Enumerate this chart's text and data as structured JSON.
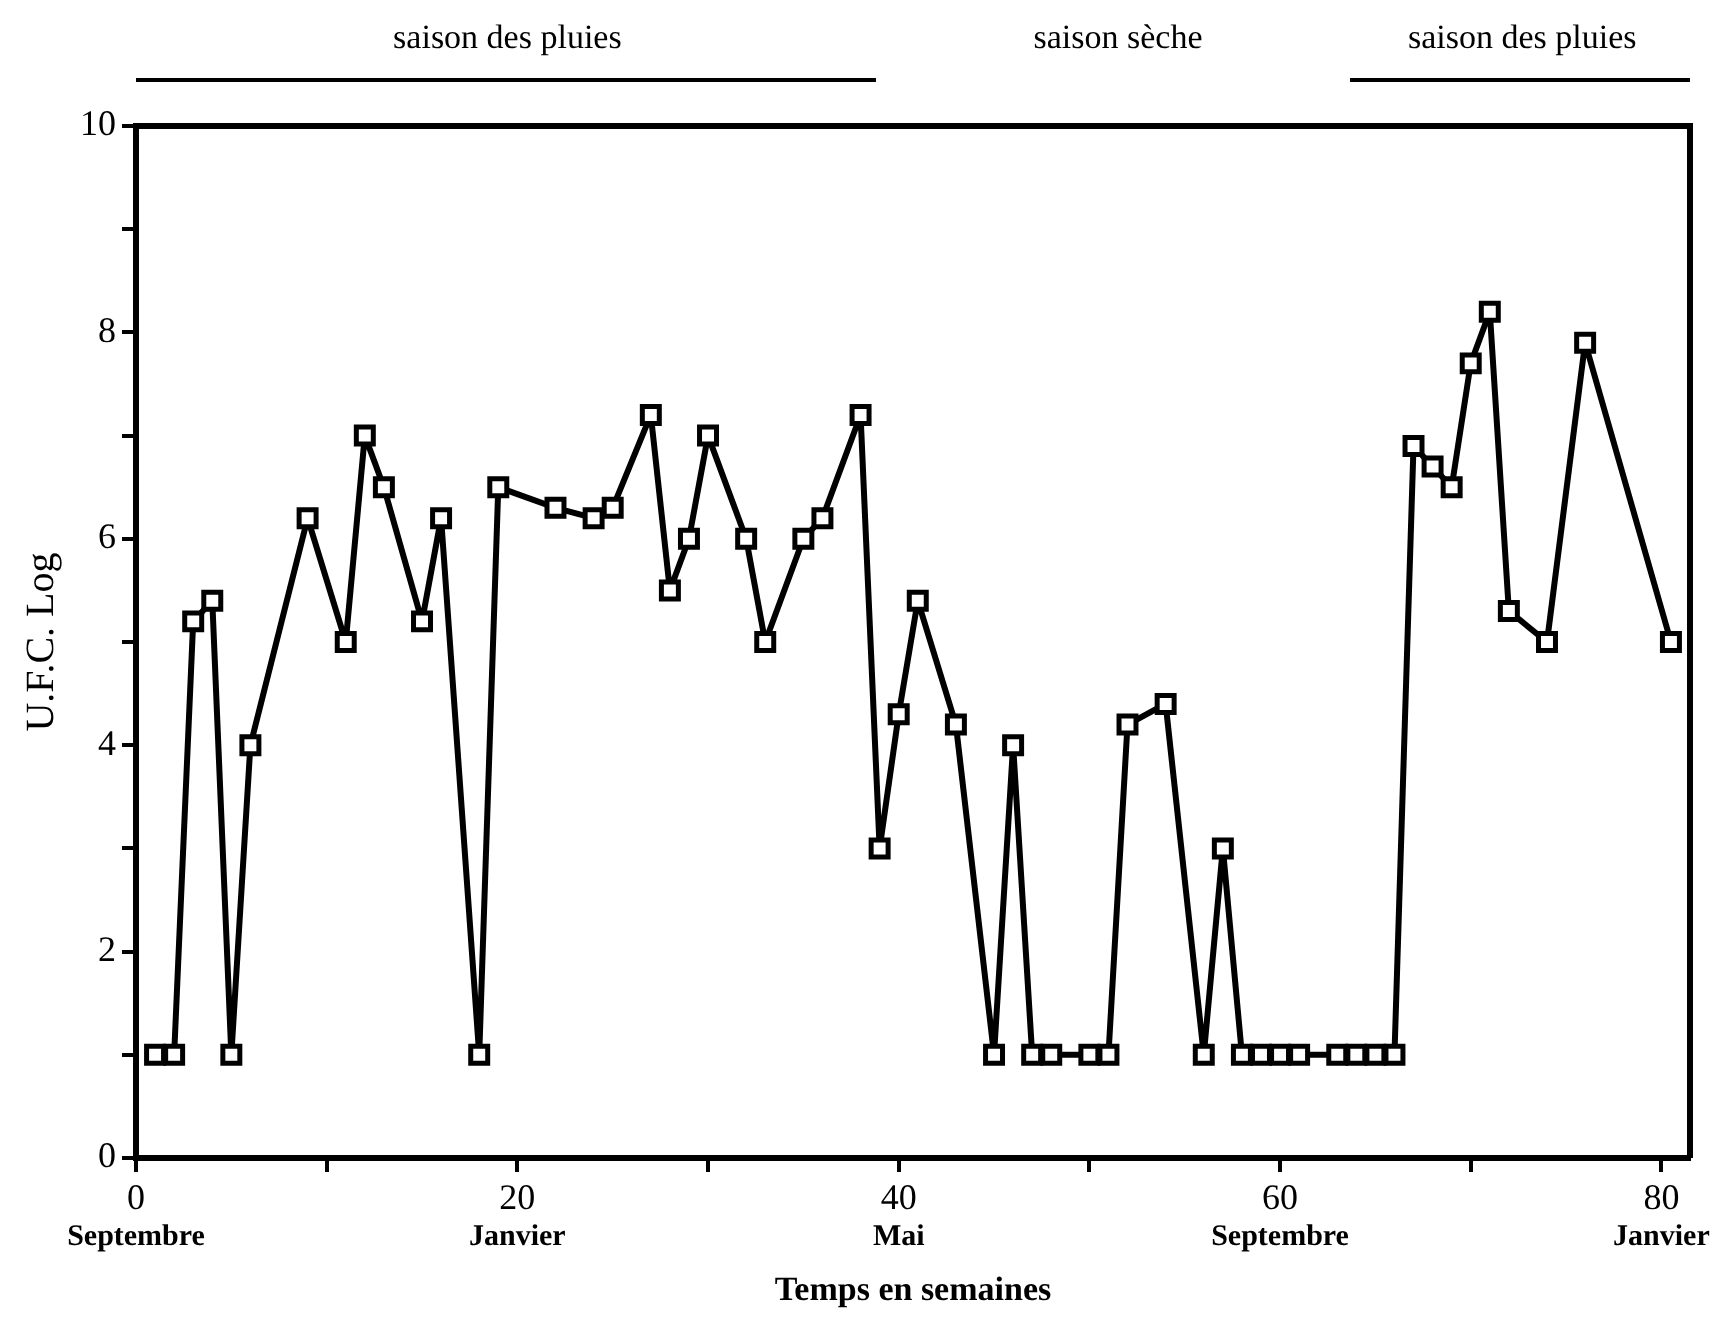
{
  "chart_data": {
    "type": "line",
    "xlabel": "Temps en semaines",
    "ylabel": "U.F.C. Log",
    "x": [
      1,
      2,
      3,
      4,
      5,
      6,
      9,
      11,
      12,
      13,
      15,
      16,
      18,
      19,
      22,
      24,
      25,
      27,
      28,
      29,
      30,
      32,
      33,
      35,
      36,
      38,
      39,
      40,
      41,
      43,
      45,
      46,
      47,
      48,
      50,
      51,
      52,
      54,
      56,
      57,
      58,
      59,
      60,
      61,
      63,
      64,
      65,
      66,
      67,
      68,
      69,
      70,
      71,
      72,
      74,
      76,
      80.5
    ],
    "series": [
      {
        "color": "#000000",
        "values": [
          1,
          1,
          5.2,
          5.4,
          1,
          4,
          6.2,
          5,
          7,
          6.5,
          5.2,
          6.2,
          1,
          6.5,
          6.3,
          6.2,
          6.3,
          7.2,
          5.5,
          6,
          7,
          6,
          5,
          6,
          6.2,
          7.2,
          3,
          4.3,
          5.4,
          4.2,
          1,
          4,
          1,
          1,
          1,
          1,
          4.2,
          4.4,
          1,
          3,
          1,
          1,
          1,
          1,
          1,
          1,
          1,
          1,
          6.9,
          6.7,
          6.5,
          7.7,
          8.2,
          5.3,
          5,
          7.9,
          5
        ]
      }
    ],
    "xlim": [
      0,
      81.5
    ],
    "xticks": [
      0,
      {
        "value": 10,
        "label": null
      },
      20,
      {
        "value": 30,
        "label": null
      },
      40,
      {
        "value": 50,
        "label": null
      },
      60,
      {
        "value": 70,
        "label": null
      },
      80
    ],
    "ylim": [
      0,
      10
    ],
    "yticks": [
      0,
      {
        "value": 1,
        "label": null
      },
      2,
      {
        "value": 3,
        "label": null
      },
      4,
      {
        "value": 5,
        "label": null
      },
      6,
      {
        "value": 7,
        "label": null
      },
      8,
      {
        "value": 9,
        "label": null
      },
      10
    ],
    "annotations": [
      "saison des pluies",
      "saison sèche",
      "saison des pluies",
      "Septembre",
      "Janvier",
      "Mai",
      "Septembre",
      "Janvier"
    ],
    "grid": false,
    "legend": false,
    "marker": "square",
    "line_style": "solid"
  }
}
